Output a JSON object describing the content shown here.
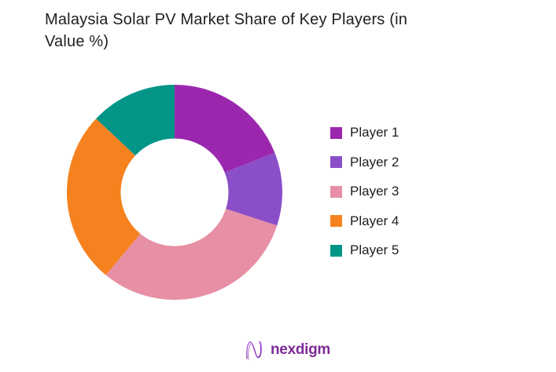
{
  "page": {
    "background_color": "#ffffff",
    "text_color": "#1e1e1e"
  },
  "title": {
    "full": "Malaysia Solar PV Market Share of Key Players (in Value %)",
    "line1": "Malaysia Solar PV Market Share of Key Players (in",
    "line2": "Value %)"
  },
  "chart_data": {
    "type": "pie",
    "subtype": "donut",
    "title": "Malaysia Solar PV Market Share of Key Players (in Value %)",
    "unit": "% of value",
    "categories": [
      "Player 1",
      "Player 2",
      "Player 3",
      "Player 4",
      "Player 5"
    ],
    "values": [
      19,
      11,
      31,
      26,
      13
    ],
    "colors": [
      "#9b27af",
      "#8a4fc8",
      "#e78fa5",
      "#f5821f",
      "#029588"
    ],
    "start_position": "12-oclock",
    "direction": "clockwise",
    "inner_radius_ratio": 0.5,
    "legend_position": "right",
    "data_labels_shown": false
  },
  "footer": {
    "brand": "nexdigm",
    "brand_color": "#7d2b96",
    "logo_icon": "nexdigm-n-wave-icon"
  }
}
